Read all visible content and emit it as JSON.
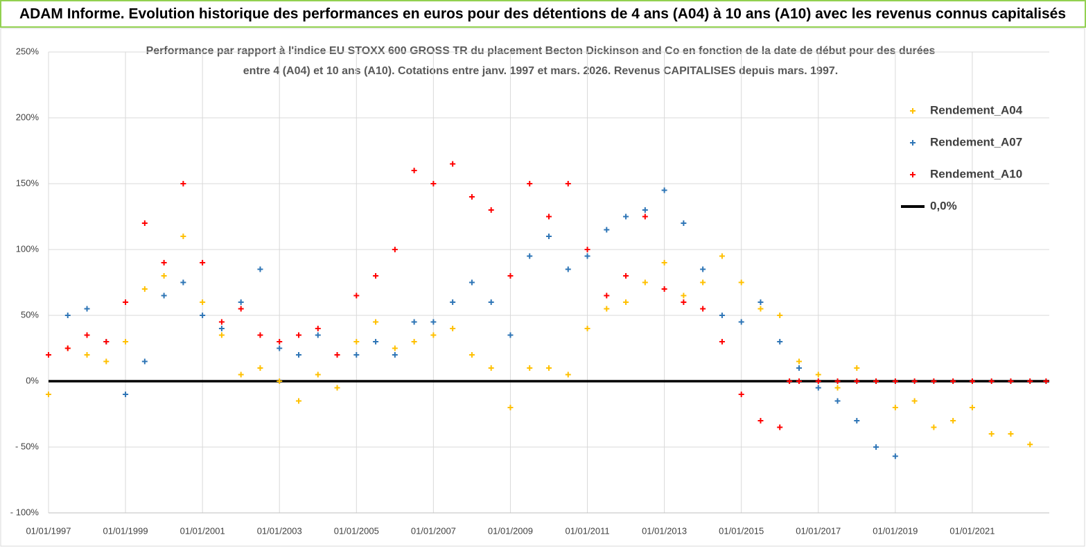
{
  "header": "ADAM Informe. Evolution historique des performances en euros pour des détentions de 4 ans (A04) à 10 ans (A10) avec les revenus connus capitalisés",
  "chart_data": {
    "type": "scatter",
    "title": [
      "Performance par rapport à l'indice EU STOXX 600 GROSS TR  du placement Becton Dickinson and Co en fonction de la date de début pour des durées",
      "entre 4 (A04) et 10 ans (A10). Cotations entre janv. 1997 et mars. 2026. Revenus CAPITALISES depuis mars. 1997."
    ],
    "xlim": [
      "1997-01",
      "2023-01"
    ],
    "xticks": [
      {
        "value": "1997-01",
        "label": "01/01/1997"
      },
      {
        "value": "1999-01",
        "label": "01/01/1999"
      },
      {
        "value": "2001-01",
        "label": "01/01/2001"
      },
      {
        "value": "2003-01",
        "label": "01/01/2003"
      },
      {
        "value": "2005-01",
        "label": "01/01/2005"
      },
      {
        "value": "2007-01",
        "label": "01/01/2007"
      },
      {
        "value": "2009-01",
        "label": "01/01/2009"
      },
      {
        "value": "2011-01",
        "label": "01/01/2011"
      },
      {
        "value": "2013-01",
        "label": "01/01/2013"
      },
      {
        "value": "2015-01",
        "label": "01/01/2015"
      },
      {
        "value": "2017-01",
        "label": "01/01/2017"
      },
      {
        "value": "2019-01",
        "label": "01/01/2019"
      },
      {
        "value": "2021-01",
        "label": "01/01/2021"
      }
    ],
    "ylim": [
      -100,
      250
    ],
    "yticks": [
      {
        "value": 250,
        "label": "250%"
      },
      {
        "value": 200,
        "label": "200%"
      },
      {
        "value": 150,
        "label": "150%"
      },
      {
        "value": 100,
        "label": "100%"
      },
      {
        "value": 50,
        "label": "50%"
      },
      {
        "value": 0,
        "label": "0%"
      },
      {
        "value": -50,
        "label": "- 50%"
      },
      {
        "value": -100,
        "label": "- 100%"
      }
    ],
    "grid": true,
    "legend": "upper right",
    "series": [
      {
        "name": "Rendement_A04",
        "color": "#ffc000",
        "marker": "+",
        "x": [
          "1997-01",
          "1997-07",
          "1998-01",
          "1998-07",
          "1999-01",
          "1999-07",
          "2000-01",
          "2000-07",
          "2001-01",
          "2001-07",
          "2002-01",
          "2002-07",
          "2003-01",
          "2003-07",
          "2004-01",
          "2004-07",
          "2005-01",
          "2005-07",
          "2006-01",
          "2006-07",
          "2007-01",
          "2007-07",
          "2008-01",
          "2008-07",
          "2009-01",
          "2009-07",
          "2010-01",
          "2010-07",
          "2011-01",
          "2011-07",
          "2012-01",
          "2012-07",
          "2013-01",
          "2013-07",
          "2014-01",
          "2014-07",
          "2015-01",
          "2015-07",
          "2016-01",
          "2016-07",
          "2017-01",
          "2017-07",
          "2018-01",
          "2018-07",
          "2019-01",
          "2019-07",
          "2020-01",
          "2020-07",
          "2021-01",
          "2021-07",
          "2022-01",
          "2022-07"
        ],
        "values": [
          -10,
          25,
          20,
          15,
          30,
          70,
          80,
          110,
          60,
          35,
          5,
          10,
          0,
          -15,
          5,
          -5,
          30,
          45,
          25,
          30,
          35,
          40,
          20,
          10,
          -20,
          10,
          10,
          5,
          40,
          55,
          60,
          75,
          90,
          65,
          75,
          95,
          75,
          55,
          50,
          15,
          5,
          -5,
          10,
          0,
          -20,
          -15,
          -35,
          -30,
          -20,
          -40,
          -40,
          -48
        ]
      },
      {
        "name": "Rendement_A07",
        "color": "#2e75b6",
        "marker": "+",
        "x": [
          "1997-01",
          "1997-07",
          "1998-01",
          "1998-07",
          "1999-01",
          "1999-07",
          "2000-01",
          "2000-07",
          "2001-01",
          "2001-07",
          "2002-01",
          "2002-07",
          "2003-01",
          "2003-07",
          "2004-01",
          "2004-07",
          "2005-01",
          "2005-07",
          "2006-01",
          "2006-07",
          "2007-01",
          "2007-07",
          "2008-01",
          "2008-07",
          "2009-01",
          "2009-07",
          "2010-01",
          "2010-07",
          "2011-01",
          "2011-07",
          "2012-01",
          "2012-07",
          "2013-01",
          "2013-07",
          "2014-01",
          "2014-07",
          "2015-01",
          "2015-07",
          "2016-01",
          "2016-07",
          "2017-01",
          "2017-07",
          "2018-01",
          "2018-07",
          "2019-01"
        ],
        "values": [
          20,
          50,
          55,
          30,
          -10,
          15,
          65,
          75,
          50,
          40,
          60,
          85,
          25,
          20,
          35,
          20,
          20,
          30,
          20,
          45,
          45,
          60,
          75,
          60,
          35,
          95,
          110,
          85,
          95,
          115,
          125,
          130,
          145,
          120,
          85,
          50,
          45,
          60,
          30,
          10,
          -5,
          -15,
          -30,
          -50,
          -57
        ]
      },
      {
        "name": "Rendement_A10",
        "color": "#ff0000",
        "marker": "+",
        "x": [
          "1997-01",
          "1997-07",
          "1998-01",
          "1998-07",
          "1999-01",
          "1999-07",
          "2000-01",
          "2000-07",
          "2001-01",
          "2001-07",
          "2002-01",
          "2002-07",
          "2003-01",
          "2003-07",
          "2004-01",
          "2004-07",
          "2005-01",
          "2005-07",
          "2006-01",
          "2006-07",
          "2007-01",
          "2007-07",
          "2008-01",
          "2008-07",
          "2009-01",
          "2009-07",
          "2010-01",
          "2010-07",
          "2011-01",
          "2011-07",
          "2012-01",
          "2012-07",
          "2013-01",
          "2013-07",
          "2014-01",
          "2014-07",
          "2015-01",
          "2015-07",
          "2016-01",
          "2016-04",
          "2016-07",
          "2017-01",
          "2017-07",
          "2018-01",
          "2018-07",
          "2019-01",
          "2019-07",
          "2020-01",
          "2020-07",
          "2021-01",
          "2021-07",
          "2022-01",
          "2022-07",
          "2022-12"
        ],
        "values": [
          20,
          25,
          35,
          30,
          60,
          120,
          90,
          150,
          90,
          45,
          55,
          35,
          30,
          35,
          40,
          20,
          65,
          80,
          100,
          160,
          150,
          165,
          140,
          130,
          80,
          150,
          125,
          150,
          100,
          65,
          80,
          125,
          70,
          60,
          55,
          30,
          -10,
          -30,
          -35,
          0,
          0,
          0,
          0,
          0,
          0,
          0,
          0,
          0,
          0,
          0,
          0,
          0,
          0,
          0
        ]
      },
      {
        "name": "0,0%",
        "color": "#000000",
        "marker": "line",
        "x": [
          "1997-01",
          "2023-01"
        ],
        "values": [
          0,
          0
        ]
      }
    ]
  }
}
